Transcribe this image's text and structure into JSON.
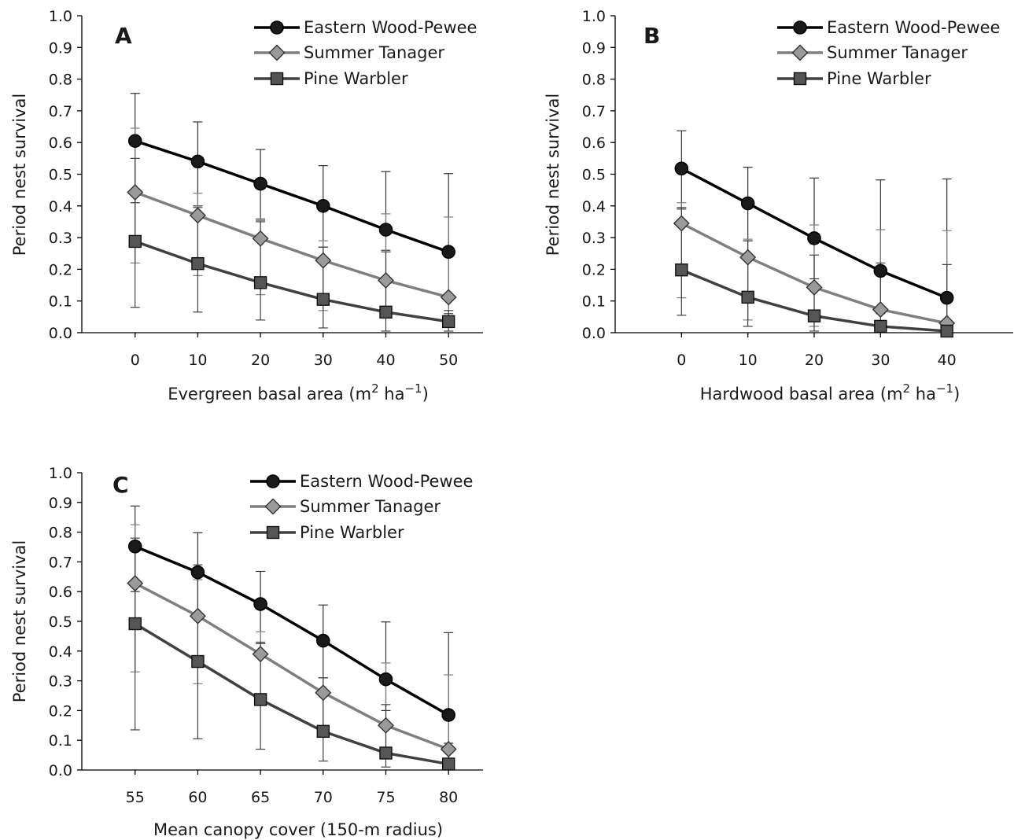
{
  "chart_data": [
    {
      "type": "line",
      "panel_label": "A",
      "xlabel": "Evergreen basal area (m² ha⁻¹)",
      "xlabel_parts": {
        "pre": "Evergreen basal area (m",
        "sup1": "2",
        "mid": " ha",
        "sup2": "−1",
        "post": ")"
      },
      "ylabel": "Period nest survival",
      "xlim": [
        -8.5,
        55.5
      ],
      "ylim": [
        0,
        1
      ],
      "x": [
        0,
        10,
        20,
        30,
        40,
        50
      ],
      "x_tick_labels": [
        "0",
        "10",
        "20",
        "30",
        "40",
        "50"
      ],
      "y_ticks": [
        0.0,
        0.1,
        0.2,
        0.3,
        0.4,
        0.5,
        0.6,
        0.7,
        0.8,
        0.9,
        1.0
      ],
      "y_tick_labels": [
        "0.0",
        "0.1",
        "0.2",
        "0.3",
        "0.4",
        "0.5",
        "0.6",
        "0.7",
        "0.8",
        "0.9",
        "1.0"
      ],
      "legend_position": "top-right",
      "grid": false,
      "series": [
        {
          "name": "Eastern Wood-Pewee",
          "marker": "circle",
          "color": "#000000",
          "fill": "#1a1a1a",
          "values": [
            0.605,
            0.54,
            0.47,
            0.4,
            0.325,
            0.255
          ],
          "lower": [
            0.41,
            0.4,
            0.355,
            0.27,
            0.26,
            0.06
          ],
          "upper": [
            0.755,
            0.665,
            0.578,
            0.527,
            0.508,
            0.502
          ]
        },
        {
          "name": "Summer Tanager",
          "marker": "diamond",
          "color": "#7f7f7f",
          "fill": "#9a9a9a",
          "values": [
            0.443,
            0.37,
            0.297,
            0.228,
            0.165,
            0.112
          ],
          "lower": [
            0.22,
            0.18,
            0.12,
            0.07,
            0.05,
            0.02
          ],
          "upper": [
            0.645,
            0.44,
            0.36,
            0.29,
            0.375,
            0.365
          ]
        },
        {
          "name": "Pine Warbler",
          "marker": "square",
          "color": "#404040",
          "fill": "#555555",
          "values": [
            0.288,
            0.218,
            0.158,
            0.105,
            0.065,
            0.035
          ],
          "lower": [
            0.08,
            0.065,
            0.04,
            0.015,
            0.005,
            0.005
          ],
          "upper": [
            0.55,
            0.395,
            0.35,
            0.27,
            0.255,
            0.07
          ]
        }
      ]
    },
    {
      "type": "line",
      "panel_label": "B",
      "xlabel": "Hardwood basal area (m² ha⁻¹)",
      "xlabel_parts": {
        "pre": "Hardwood basal area (m",
        "sup1": "2",
        "mid": " ha",
        "sup2": "−1",
        "post": ")"
      },
      "ylabel": "Period nest survival",
      "xlim": [
        -10,
        50
      ],
      "ylim": [
        0,
        1
      ],
      "x": [
        0,
        10,
        20,
        30,
        40
      ],
      "x_tick_labels": [
        "0",
        "10",
        "20",
        "30",
        "40"
      ],
      "y_ticks": [
        0.0,
        0.1,
        0.2,
        0.3,
        0.4,
        0.5,
        0.6,
        0.7,
        0.8,
        0.9,
        1.0
      ],
      "y_tick_labels": [
        "0.0",
        "0.1",
        "0.2",
        "0.3",
        "0.4",
        "0.5",
        "0.6",
        "0.7",
        "0.8",
        "0.9",
        "1.0"
      ],
      "legend_position": "top-right",
      "grid": false,
      "series": [
        {
          "name": "Eastern Wood-Pewee",
          "marker": "circle",
          "color": "#000000",
          "fill": "#1a1a1a",
          "values": [
            0.518,
            0.408,
            0.298,
            0.195,
            0.11
          ],
          "lower": [
            0.39,
            0.29,
            0.17,
            0.06,
            0.01
          ],
          "upper": [
            0.637,
            0.522,
            0.488,
            0.482,
            0.485
          ]
        },
        {
          "name": "Summer Tanager",
          "marker": "diamond",
          "color": "#7f7f7f",
          "fill": "#9a9a9a",
          "values": [
            0.345,
            0.238,
            0.143,
            0.073,
            0.03
          ],
          "lower": [
            0.11,
            0.04,
            0.02,
            0.005,
            0.0
          ],
          "upper": [
            0.41,
            0.295,
            0.34,
            0.325,
            0.322
          ]
        },
        {
          "name": "Pine Warbler",
          "marker": "square",
          "color": "#404040",
          "fill": "#555555",
          "values": [
            0.198,
            0.112,
            0.053,
            0.02,
            0.005
          ],
          "lower": [
            0.055,
            0.02,
            0.005,
            0.0,
            0.0
          ],
          "upper": [
            0.395,
            0.29,
            0.245,
            0.22,
            0.215
          ]
        }
      ]
    },
    {
      "type": "line",
      "panel_label": "C",
      "xlabel": "Mean canopy cover (150-m radius)",
      "xlabel_parts": {
        "pre": "Mean canopy cover (150-m radius)",
        "sup1": "",
        "mid": "",
        "sup2": "",
        "post": ""
      },
      "ylabel": "Period nest survival",
      "xlim": [
        50.75,
        82.75
      ],
      "ylim": [
        0,
        1
      ],
      "x": [
        55,
        60,
        65,
        70,
        75,
        80
      ],
      "x_tick_labels": [
        "55",
        "60",
        "65",
        "70",
        "75",
        "80"
      ],
      "y_ticks": [
        0.0,
        0.1,
        0.2,
        0.3,
        0.4,
        0.5,
        0.6,
        0.7,
        0.8,
        0.9,
        1.0
      ],
      "y_tick_labels": [
        "0.0",
        "0.1",
        "0.2",
        "0.3",
        "0.4",
        "0.5",
        "0.6",
        "0.7",
        "0.8",
        "0.9",
        "1.0"
      ],
      "legend_position": "top-right",
      "grid": false,
      "series": [
        {
          "name": "Eastern Wood-Pewee",
          "marker": "circle",
          "color": "#000000",
          "fill": "#1a1a1a",
          "values": [
            0.752,
            0.665,
            0.558,
            0.435,
            0.305,
            0.185
          ],
          "lower": [
            0.6,
            0.52,
            0.425,
            0.31,
            0.2,
            0.09
          ],
          "upper": [
            0.888,
            0.798,
            0.668,
            0.555,
            0.498,
            0.462
          ]
        },
        {
          "name": "Summer Tanager",
          "marker": "diamond",
          "color": "#7f7f7f",
          "fill": "#9a9a9a",
          "values": [
            0.628,
            0.518,
            0.39,
            0.26,
            0.15,
            0.07
          ],
          "lower": [
            0.33,
            0.29,
            0.23,
            0.13,
            0.06,
            0.015
          ],
          "upper": [
            0.825,
            0.64,
            0.465,
            0.31,
            0.36,
            0.32
          ]
        },
        {
          "name": "Pine Warbler",
          "marker": "square",
          "color": "#404040",
          "fill": "#555555",
          "values": [
            0.492,
            0.365,
            0.237,
            0.13,
            0.057,
            0.02
          ],
          "lower": [
            0.135,
            0.105,
            0.07,
            0.03,
            0.01,
            0.0
          ],
          "upper": [
            0.78,
            0.69,
            0.43,
            0.31,
            0.22,
            0.07
          ]
        }
      ]
    }
  ]
}
